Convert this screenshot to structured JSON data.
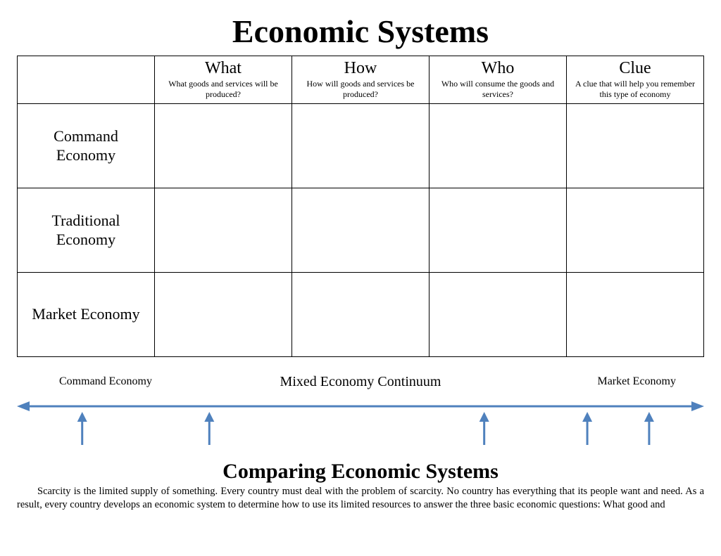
{
  "title": "Economic Systems",
  "columns": [
    {
      "title": "What",
      "subtitle": "What goods and services will be produced?"
    },
    {
      "title": "How",
      "subtitle": "How will goods and services be produced?"
    },
    {
      "title": "Who",
      "subtitle": "Who will consume the goods and services?"
    },
    {
      "title": "Clue",
      "subtitle": "A clue that will help you remember this type of economy"
    }
  ],
  "rows": [
    {
      "label": "Command Economy"
    },
    {
      "label": "Traditional Economy"
    },
    {
      "label": "Market Economy"
    }
  ],
  "continuum": {
    "left_label": "Command Economy",
    "center_label": "Mixed Economy Continuum",
    "right_label": "Market Economy",
    "line_color": "#4f81bd",
    "line_width": 3,
    "arrow_positions_pct": [
      9.5,
      28.0,
      68.0,
      83.0,
      92.0
    ]
  },
  "subtitle": "Comparing Economic Systems",
  "paragraph": "Scarcity is the limited supply of something. Every country must deal with the problem of scarcity. No country has everything that its people want and need. As a result, every country develops an economic system to determine how to use its limited resources to answer the three basic economic questions: What good and"
}
